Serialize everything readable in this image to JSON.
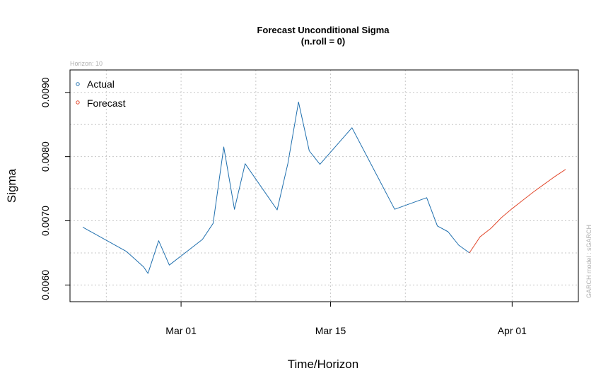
{
  "chart_data": {
    "type": "line",
    "title": "Forecast Unconditional Sigma",
    "subtitle": "(n.roll = 0)",
    "horizon_note": "Horizon: 10",
    "side_note": "GARCH model : sGARCH",
    "xlabel": "Time/Horizon",
    "ylabel": "Sigma",
    "x_ticks": [
      {
        "label": "Mar 01",
        "day": 0
      },
      {
        "label": "Mar 15",
        "day": 14
      },
      {
        "label": "Apr 01",
        "day": 31
      }
    ],
    "y_ticks": [
      "0.0060",
      "0.0070",
      "0.0080",
      "0.0090"
    ],
    "y_tick_values": [
      0.006,
      0.007,
      0.008,
      0.009
    ],
    "grid": true,
    "legend_position": "top-left",
    "series": [
      {
        "name": "Actual",
        "color": "#1f6fae",
        "points": [
          [
            -9.2,
            0.0069
          ],
          [
            -5.1,
            0.00652
          ],
          [
            -3.5,
            0.00628
          ],
          [
            -3.1,
            0.00618
          ],
          [
            -2.1,
            0.00669
          ],
          [
            -1.1,
            0.00631
          ],
          [
            2.0,
            0.00671
          ],
          [
            3.0,
            0.00696
          ],
          [
            4.0,
            0.00815
          ],
          [
            5.0,
            0.00718
          ],
          [
            6.0,
            0.00789
          ],
          [
            9.0,
            0.00717
          ],
          [
            10.0,
            0.00789
          ],
          [
            11.0,
            0.00885
          ],
          [
            12.0,
            0.00809
          ],
          [
            13.0,
            0.00788
          ],
          [
            16.0,
            0.00845
          ],
          [
            20.0,
            0.00718
          ],
          [
            23.0,
            0.00736
          ],
          [
            24.0,
            0.00692
          ],
          [
            25.0,
            0.00683
          ],
          [
            26.0,
            0.00662
          ],
          [
            27.0,
            0.0065
          ]
        ]
      },
      {
        "name": "Forecast",
        "color": "#e2492d",
        "points": [
          [
            27.0,
            0.0065
          ],
          [
            28.0,
            0.00675
          ],
          [
            29.0,
            0.00688
          ],
          [
            30.0,
            0.00705
          ],
          [
            31.0,
            0.00719
          ],
          [
            32.0,
            0.00732
          ],
          [
            33.0,
            0.00745
          ],
          [
            34.0,
            0.00757
          ],
          [
            35.0,
            0.00769
          ],
          [
            36.0,
            0.0078
          ]
        ]
      }
    ]
  }
}
